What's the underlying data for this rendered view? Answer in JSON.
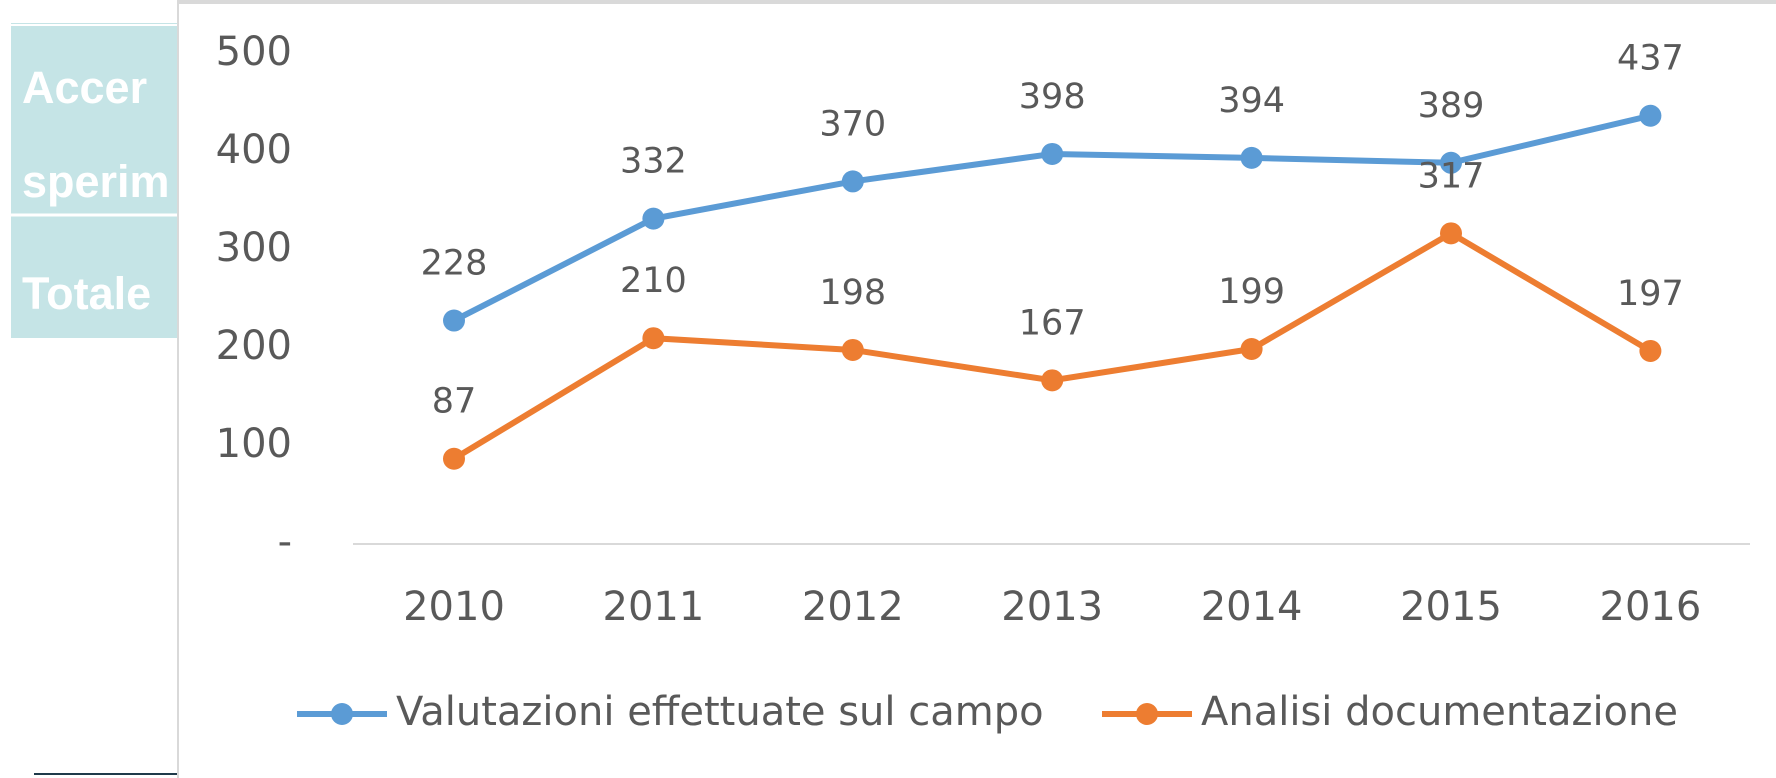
{
  "background_table": {
    "cells": [
      "Accer",
      "sperim",
      "Totale"
    ]
  },
  "chart_data": {
    "type": "line",
    "categories": [
      "2010",
      "2011",
      "2012",
      "2013",
      "2014",
      "2015",
      "2016"
    ],
    "series": [
      {
        "name": "Valutazioni effettuate sul campo",
        "color": "#5b9bd5",
        "values": [
          228,
          332,
          370,
          398,
          394,
          389,
          437
        ]
      },
      {
        "name": "Analisi documentazione",
        "color": "#ed7d31",
        "values": [
          87,
          210,
          198,
          167,
          199,
          317,
          197
        ]
      }
    ],
    "ylim": [
      0,
      500
    ],
    "yticks": [
      {
        "value": 0,
        "label": "-"
      },
      100,
      200,
      300,
      400,
      500
    ],
    "grid": false,
    "legend": "bottom"
  }
}
